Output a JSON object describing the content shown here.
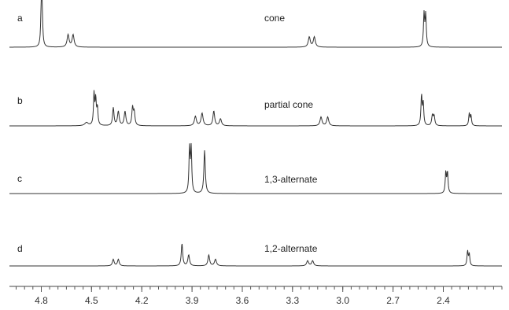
{
  "chart_data": {
    "type": "line",
    "title": "",
    "xlabel": "",
    "ylabel": "",
    "x_reversed": true,
    "xlim": [
      4.99,
      2.05
    ],
    "x_ticks": [
      "4.8",
      "4.5",
      "4.2",
      "3.9",
      "3.6",
      "3.3",
      "3.0",
      "2.7",
      "2.4"
    ],
    "x_tick_values": [
      4.8,
      4.5,
      4.2,
      3.9,
      3.6,
      3.3,
      3.0,
      2.7,
      2.4
    ],
    "grid": false,
    "series": [
      {
        "label": "a",
        "name": "cone",
        "peaks": [
          {
            "ppm": 4.8,
            "height": 1.0,
            "width": 0.004
          },
          {
            "ppm": 4.795,
            "height": 0.95,
            "width": 0.004
          },
          {
            "ppm": 4.64,
            "height": 0.34,
            "width": 0.007
          },
          {
            "ppm": 4.61,
            "height": 0.34,
            "width": 0.007
          },
          {
            "ppm": 3.2,
            "height": 0.28,
            "width": 0.007
          },
          {
            "ppm": 3.17,
            "height": 0.28,
            "width": 0.007
          },
          {
            "ppm": 2.515,
            "height": 0.9,
            "width": 0.004
          },
          {
            "ppm": 2.505,
            "height": 0.88,
            "width": 0.004
          }
        ]
      },
      {
        "label": "b",
        "name": "partial cone",
        "peaks": [
          {
            "ppm": 4.53,
            "height": 0.1,
            "width": 0.012
          },
          {
            "ppm": 4.485,
            "height": 1.0,
            "width": 0.004
          },
          {
            "ppm": 4.475,
            "height": 0.8,
            "width": 0.004
          },
          {
            "ppm": 4.465,
            "height": 0.55,
            "width": 0.004
          },
          {
            "ppm": 4.37,
            "height": 0.57,
            "width": 0.005
          },
          {
            "ppm": 4.34,
            "height": 0.45,
            "width": 0.006
          },
          {
            "ppm": 4.3,
            "height": 0.45,
            "width": 0.006
          },
          {
            "ppm": 4.255,
            "height": 0.57,
            "width": 0.005
          },
          {
            "ppm": 4.245,
            "height": 0.4,
            "width": 0.005
          },
          {
            "ppm": 3.88,
            "height": 0.3,
            "width": 0.007
          },
          {
            "ppm": 3.84,
            "height": 0.4,
            "width": 0.007
          },
          {
            "ppm": 3.77,
            "height": 0.47,
            "width": 0.006
          },
          {
            "ppm": 3.73,
            "height": 0.22,
            "width": 0.007
          },
          {
            "ppm": 3.13,
            "height": 0.28,
            "width": 0.007
          },
          {
            "ppm": 3.09,
            "height": 0.28,
            "width": 0.007
          },
          {
            "ppm": 2.53,
            "height": 0.95,
            "width": 0.004
          },
          {
            "ppm": 2.52,
            "height": 0.7,
            "width": 0.004
          },
          {
            "ppm": 2.465,
            "height": 0.32,
            "width": 0.005
          },
          {
            "ppm": 2.455,
            "height": 0.3,
            "width": 0.005
          },
          {
            "ppm": 2.245,
            "height": 0.38,
            "width": 0.004
          },
          {
            "ppm": 2.235,
            "height": 0.32,
            "width": 0.004
          }
        ]
      },
      {
        "label": "c",
        "name": "1,3-alternate",
        "peaks": [
          {
            "ppm": 3.915,
            "height": 1.0,
            "width": 0.004
          },
          {
            "ppm": 3.905,
            "height": 1.0,
            "width": 0.004
          },
          {
            "ppm": 3.825,
            "height": 0.98,
            "width": 0.005
          },
          {
            "ppm": 2.385,
            "height": 0.47,
            "width": 0.004
          },
          {
            "ppm": 2.375,
            "height": 0.47,
            "width": 0.004
          }
        ]
      },
      {
        "label": "d",
        "name": "1,2-alternate",
        "peaks": [
          {
            "ppm": 4.37,
            "height": 0.18,
            "width": 0.006
          },
          {
            "ppm": 4.34,
            "height": 0.18,
            "width": 0.006
          },
          {
            "ppm": 3.96,
            "height": 0.62,
            "width": 0.005
          },
          {
            "ppm": 3.92,
            "height": 0.3,
            "width": 0.006
          },
          {
            "ppm": 3.8,
            "height": 0.3,
            "width": 0.006
          },
          {
            "ppm": 3.76,
            "height": 0.18,
            "width": 0.007
          },
          {
            "ppm": 3.21,
            "height": 0.14,
            "width": 0.007
          },
          {
            "ppm": 3.18,
            "height": 0.14,
            "width": 0.007
          },
          {
            "ppm": 2.255,
            "height": 0.4,
            "width": 0.004
          },
          {
            "ppm": 2.245,
            "height": 0.32,
            "width": 0.004
          }
        ]
      }
    ]
  }
}
